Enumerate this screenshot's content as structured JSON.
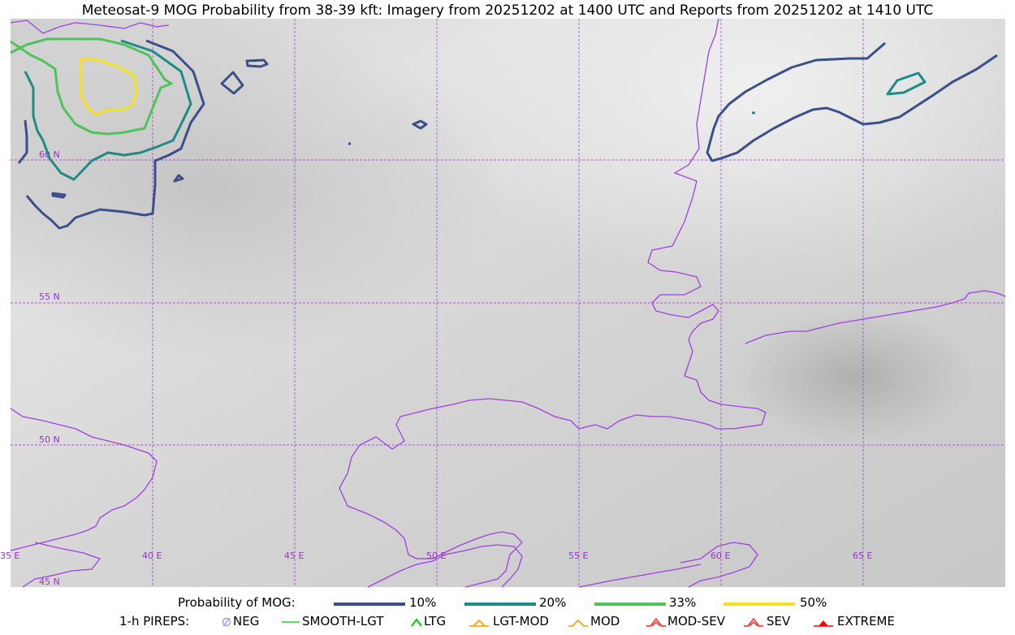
{
  "title": "Meteosat-9 MOG Probability from 38-39 kft: Imagery from 20251202 at 1400 UTC and Reports from 20251202 at 1410 UTC",
  "map": {
    "lat_labels": [
      "60 N",
      "55 N",
      "50 N",
      "45 N"
    ],
    "lon_labels": [
      "35 E",
      "40 E",
      "45 E",
      "50 E",
      "55 E",
      "60 E",
      "65 E"
    ],
    "grid_color": "#9932cc",
    "border_color": "#a040e0"
  },
  "legend": {
    "prob_label": "Probability of MOG:",
    "levels": [
      {
        "label": "10%",
        "color": "#3b4f8a"
      },
      {
        "label": "20%",
        "color": "#1f8a86"
      },
      {
        "label": "33%",
        "color": "#4ec45a"
      },
      {
        "label": "50%",
        "color": "#f5e21f"
      }
    ],
    "pireps_label": "1-h PIREPS:",
    "pireps": [
      {
        "label": "NEG",
        "color": "#9999ff"
      },
      {
        "label": "SMOOTH-LGT",
        "color": "#33cc33"
      },
      {
        "label": "LTG",
        "color": "#00cc00"
      },
      {
        "label": "LGT-MOD",
        "color": "#f0a000"
      },
      {
        "label": "MOD",
        "color": "#f0a000"
      },
      {
        "label": "MOD-SEV",
        "color": "#ff2020"
      },
      {
        "label": "SEV",
        "color": "#ff2020"
      },
      {
        "label": "EXTREME",
        "color": "#ff0000"
      }
    ]
  }
}
